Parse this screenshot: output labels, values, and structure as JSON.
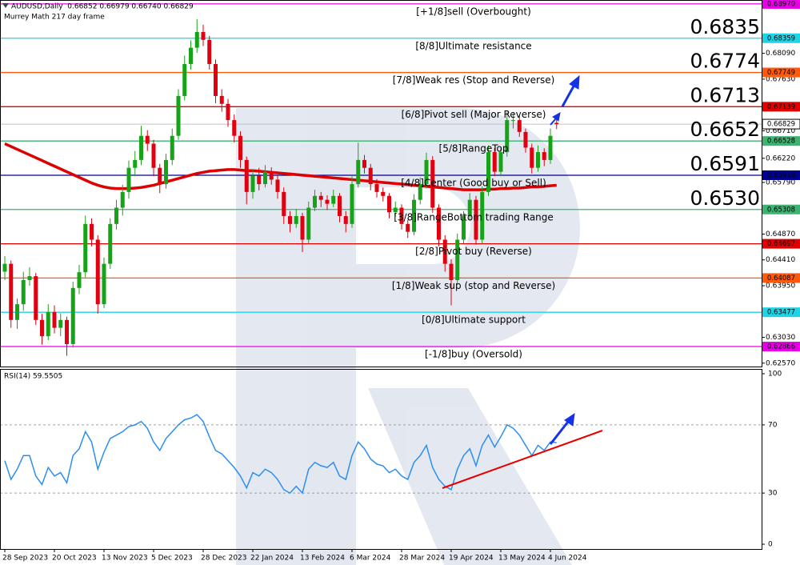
{
  "chart_data": [
    {
      "type": "candlestick",
      "title": "AUDUSD,Daily  0.66852 0.66979 0.66740 0.66829",
      "subtitle": "Murrey Math 217 day frame",
      "up_color": "#17a317",
      "down_color": "#e0000f",
      "big_label_color": "#1744d6",
      "ylim": [
        0.6251,
        0.6904
      ],
      "yticks": [
        {
          "value": 0.6809,
          "label": "0.68090"
        },
        {
          "value": 0.6763,
          "label": "0.67630"
        },
        {
          "value": 0.6671,
          "label": "0.66710"
        },
        {
          "value": 0.6622,
          "label": "0.66220"
        },
        {
          "value": 0.6579,
          "label": "0.65790"
        },
        {
          "value": 0.6487,
          "label": "0.64870"
        },
        {
          "value": 0.6441,
          "label": "0.64410"
        },
        {
          "value": 0.6395,
          "label": "0.63950"
        },
        {
          "value": 0.6303,
          "label": "0.63030"
        },
        {
          "value": 0.6257,
          "label": "0.62570"
        }
      ],
      "levels": [
        {
          "name": "[+1/8]sell (Overbought)",
          "value": 0.6897,
          "label": "0.68970",
          "color": "#e600e6"
        },
        {
          "name": "[8/8]Ultimate resistance",
          "value": 0.68359,
          "label": "0.68359",
          "big_label": "0.6835",
          "color": "#1fd3e6"
        },
        {
          "name": "[7/8]Weak res (Stop and Reverse)",
          "value": 0.67749,
          "label": "0.67749",
          "big_label": "0.6774",
          "color": "#ff5a0a"
        },
        {
          "name": "[6/8]Pivot sell (Major Reverse)",
          "value": 0.67139,
          "label": "0.67139",
          "big_label": "0.6713",
          "color": "#e00000"
        },
        {
          "name": "[5/8]RangeTop",
          "value": 0.66528,
          "label": "0.66528",
          "big_label": "0.6652",
          "color": "#3cb371"
        },
        {
          "name": "[4/8]Center (Good buy or Sell)",
          "value": 0.65918,
          "label": "0.65918",
          "big_label": "0.6591",
          "color": "#000090"
        },
        {
          "name": "[3/8]RangeBottom trading Range",
          "value": 0.65308,
          "label": "0.65308",
          "big_label": "0.6530",
          "color": "#3cb371"
        },
        {
          "name": "[2/8]Pivot buy (Reverse)",
          "value": 0.64697,
          "label": "0.64697",
          "color": "#e00000"
        },
        {
          "name": "[1/8]Weak sup (stop and Reverse)",
          "value": 0.64087,
          "label": "0.64087",
          "color": "#ff5a0a"
        },
        {
          "name": "[0/8]Ultimate support",
          "value": 0.63477,
          "label": "0.63477",
          "color": "#1fd3e6"
        },
        {
          "name": "[-1/8]buy (Oversold)",
          "value": 0.62866,
          "label": "0.62866",
          "color": "#e600e6"
        }
      ],
      "x_labels": [
        "28 Sep 2023",
        "20 Oct 2023",
        "13 Nov 2023",
        "5 Dec 2023",
        "28 Dec 2023",
        "22 Jan 2024",
        "13 Feb 2024",
        "6 Mar 2024",
        "28 Mar 2024",
        "19 Apr 2024",
        "13 May 2024",
        "4 Jun 2024"
      ],
      "candles": [
        [
          0.642,
          0.6448,
          0.6405,
          0.6434
        ],
        [
          0.6434,
          0.644,
          0.632,
          0.6334
        ],
        [
          0.6334,
          0.6372,
          0.6318,
          0.6362
        ],
        [
          0.6362,
          0.642,
          0.635,
          0.6405
        ],
        [
          0.6405,
          0.6428,
          0.6395,
          0.6412
        ],
        [
          0.6412,
          0.6418,
          0.6325,
          0.6334
        ],
        [
          0.6334,
          0.6345,
          0.629,
          0.6305
        ],
        [
          0.6305,
          0.6362,
          0.6298,
          0.6348
        ],
        [
          0.6348,
          0.636,
          0.631,
          0.632
        ],
        [
          0.632,
          0.6346,
          0.6305,
          0.6334
        ],
        [
          0.6334,
          0.634,
          0.627,
          0.6291
        ],
        [
          0.6291,
          0.6402,
          0.6285,
          0.6391
        ],
        [
          0.6391,
          0.6432,
          0.638,
          0.6419
        ],
        [
          0.6419,
          0.652,
          0.641,
          0.6505
        ],
        [
          0.6505,
          0.6515,
          0.6465,
          0.6477
        ],
        [
          0.6477,
          0.6485,
          0.6345,
          0.6362
        ],
        [
          0.6362,
          0.6445,
          0.6355,
          0.6434
        ],
        [
          0.6434,
          0.6515,
          0.6425,
          0.6505
        ],
        [
          0.6505,
          0.6548,
          0.6495,
          0.6534
        ],
        [
          0.6534,
          0.6575,
          0.652,
          0.6562
        ],
        [
          0.6562,
          0.6618,
          0.655,
          0.6605
        ],
        [
          0.6605,
          0.6635,
          0.659,
          0.6619
        ],
        [
          0.6619,
          0.668,
          0.661,
          0.6662
        ],
        [
          0.6662,
          0.6672,
          0.6635,
          0.6648
        ],
        [
          0.6648,
          0.6655,
          0.659,
          0.6605
        ],
        [
          0.6605,
          0.6612,
          0.656,
          0.6576
        ],
        [
          0.6576,
          0.663,
          0.6568,
          0.6619
        ],
        [
          0.6619,
          0.6675,
          0.661,
          0.6662
        ],
        [
          0.6662,
          0.6745,
          0.6655,
          0.6733
        ],
        [
          0.6733,
          0.6805,
          0.6725,
          0.679
        ],
        [
          0.679,
          0.6832,
          0.678,
          0.6819
        ],
        [
          0.6819,
          0.687,
          0.681,
          0.6847
        ],
        [
          0.6847,
          0.686,
          0.6822,
          0.6833
        ],
        [
          0.6833,
          0.684,
          0.678,
          0.679
        ],
        [
          0.679,
          0.6798,
          0.672,
          0.6733
        ],
        [
          0.6733,
          0.6745,
          0.6705,
          0.6719
        ],
        [
          0.6719,
          0.6728,
          0.6678,
          0.669
        ],
        [
          0.669,
          0.67,
          0.665,
          0.6662
        ],
        [
          0.6662,
          0.667,
          0.6605,
          0.6619
        ],
        [
          0.6619,
          0.6625,
          0.654,
          0.6562
        ],
        [
          0.6562,
          0.6602,
          0.655,
          0.6591
        ],
        [
          0.6591,
          0.6605,
          0.6565,
          0.6576
        ],
        [
          0.6576,
          0.661,
          0.657,
          0.6598
        ],
        [
          0.6598,
          0.6606,
          0.6575,
          0.6584
        ],
        [
          0.6584,
          0.6592,
          0.655,
          0.6562
        ],
        [
          0.6562,
          0.657,
          0.6505,
          0.6519
        ],
        [
          0.6519,
          0.6528,
          0.649,
          0.6505
        ],
        [
          0.6505,
          0.6532,
          0.6498,
          0.6519
        ],
        [
          0.6519,
          0.6525,
          0.6455,
          0.6477
        ],
        [
          0.6477,
          0.6545,
          0.647,
          0.6534
        ],
        [
          0.6534,
          0.6566,
          0.6528,
          0.6555
        ],
        [
          0.6555,
          0.6562,
          0.6535,
          0.6548
        ],
        [
          0.6548,
          0.6556,
          0.653,
          0.6541
        ],
        [
          0.6541,
          0.6566,
          0.6535,
          0.6555
        ],
        [
          0.6555,
          0.656,
          0.6508,
          0.6519
        ],
        [
          0.6519,
          0.6528,
          0.649,
          0.6505
        ],
        [
          0.6505,
          0.659,
          0.6498,
          0.6576
        ],
        [
          0.6576,
          0.665,
          0.657,
          0.6619
        ],
        [
          0.6619,
          0.6628,
          0.6595,
          0.6605
        ],
        [
          0.6605,
          0.6612,
          0.6565,
          0.6576
        ],
        [
          0.6576,
          0.6585,
          0.6552,
          0.6562
        ],
        [
          0.6562,
          0.657,
          0.6545,
          0.6555
        ],
        [
          0.6555,
          0.656,
          0.6515,
          0.6526
        ],
        [
          0.6526,
          0.6545,
          0.6518,
          0.6534
        ],
        [
          0.6534,
          0.654,
          0.6495,
          0.6505
        ],
        [
          0.6505,
          0.6512,
          0.648,
          0.6491
        ],
        [
          0.6491,
          0.6558,
          0.6485,
          0.6548
        ],
        [
          0.6548,
          0.6588,
          0.654,
          0.6576
        ],
        [
          0.6576,
          0.6632,
          0.6568,
          0.6619
        ],
        [
          0.6619,
          0.6626,
          0.6525,
          0.6534
        ],
        [
          0.6534,
          0.654,
          0.6465,
          0.6477
        ],
        [
          0.6477,
          0.6485,
          0.642,
          0.6434
        ],
        [
          0.6434,
          0.6442,
          0.636,
          0.6405
        ],
        [
          0.6405,
          0.6488,
          0.6398,
          0.6477
        ],
        [
          0.6477,
          0.6528,
          0.647,
          0.6519
        ],
        [
          0.6519,
          0.656,
          0.6512,
          0.6548
        ],
        [
          0.6548,
          0.6555,
          0.6468,
          0.6477
        ],
        [
          0.6477,
          0.6572,
          0.647,
          0.6562
        ],
        [
          0.6562,
          0.6645,
          0.6555,
          0.6633
        ],
        [
          0.6633,
          0.664,
          0.659,
          0.6598
        ],
        [
          0.6598,
          0.6642,
          0.659,
          0.6633
        ],
        [
          0.6633,
          0.6705,
          0.6625,
          0.669
        ],
        [
          0.669,
          0.6702,
          0.6675,
          0.669
        ],
        [
          0.669,
          0.6698,
          0.666,
          0.6669
        ],
        [
          0.6669,
          0.6675,
          0.6632,
          0.6641
        ],
        [
          0.6641,
          0.6648,
          0.6595,
          0.6605
        ],
        [
          0.6605,
          0.6645,
          0.6598,
          0.6633
        ],
        [
          0.6633,
          0.664,
          0.6608,
          0.6619
        ],
        [
          0.6619,
          0.6675,
          0.6612,
          0.6662
        ],
        [
          0.66852,
          0.66979,
          0.6674,
          0.66829
        ]
      ],
      "ma": {
        "color": "#dd0000",
        "values": [
          0.6648,
          0.6643,
          0.6638,
          0.6633,
          0.6628,
          0.6623,
          0.6618,
          0.6613,
          0.6608,
          0.6603,
          0.6598,
          0.6593,
          0.6588,
          0.6583,
          0.6578,
          0.6574,
          0.6571,
          0.6569,
          0.6568,
          0.6568,
          0.6568,
          0.6569,
          0.657,
          0.6572,
          0.6574,
          0.6577,
          0.658,
          0.6583,
          0.6586,
          0.6589,
          0.6592,
          0.6595,
          0.6597,
          0.6599,
          0.66,
          0.6601,
          0.6602,
          0.6602,
          0.6601,
          0.66,
          0.66,
          0.6599,
          0.6598,
          0.6597,
          0.6596,
          0.6595,
          0.6594,
          0.6593,
          0.6592,
          0.6591,
          0.659,
          0.6589,
          0.6588,
          0.6587,
          0.6586,
          0.6585,
          0.6584,
          0.6583,
          0.6582,
          0.6581,
          0.658,
          0.6579,
          0.6578,
          0.6577,
          0.6576,
          0.6575,
          0.6574,
          0.6573,
          0.6572,
          0.6571,
          0.657,
          0.6569,
          0.6568,
          0.6567,
          0.6566,
          0.6566,
          0.6566,
          0.6566,
          0.6567,
          0.6567,
          0.6568,
          0.6568,
          0.6569,
          0.6569,
          0.657,
          0.6571,
          0.6571,
          0.6572,
          0.6573,
          0.6574
        ]
      }
    },
    {
      "type": "line",
      "title": "RSI(14) 59.5505",
      "color": "#2b8ff0",
      "ylim": [
        -2.8,
        102.8
      ],
      "yticks": [
        0,
        30,
        70,
        100
      ],
      "levels": [
        30,
        70
      ],
      "values": [
        49,
        38,
        44,
        52,
        52,
        40,
        35,
        45,
        40,
        42,
        36,
        52,
        56,
        66,
        60,
        44,
        54,
        62,
        64,
        66,
        69,
        70,
        72,
        68,
        60,
        55,
        62,
        66,
        70,
        73,
        74,
        76,
        72,
        63,
        55,
        53,
        49,
        45,
        40,
        33,
        42,
        40,
        44,
        42,
        38,
        32,
        30,
        34,
        30,
        44,
        48,
        46,
        45,
        48,
        40,
        38,
        52,
        60,
        56,
        50,
        47,
        46,
        42,
        44,
        40,
        38,
        48,
        52,
        58,
        45,
        38,
        34,
        32,
        44,
        52,
        56,
        46,
        58,
        64,
        57,
        63,
        70,
        68,
        64,
        58,
        52,
        58,
        55,
        60,
        59.5505
      ]
    }
  ]
}
